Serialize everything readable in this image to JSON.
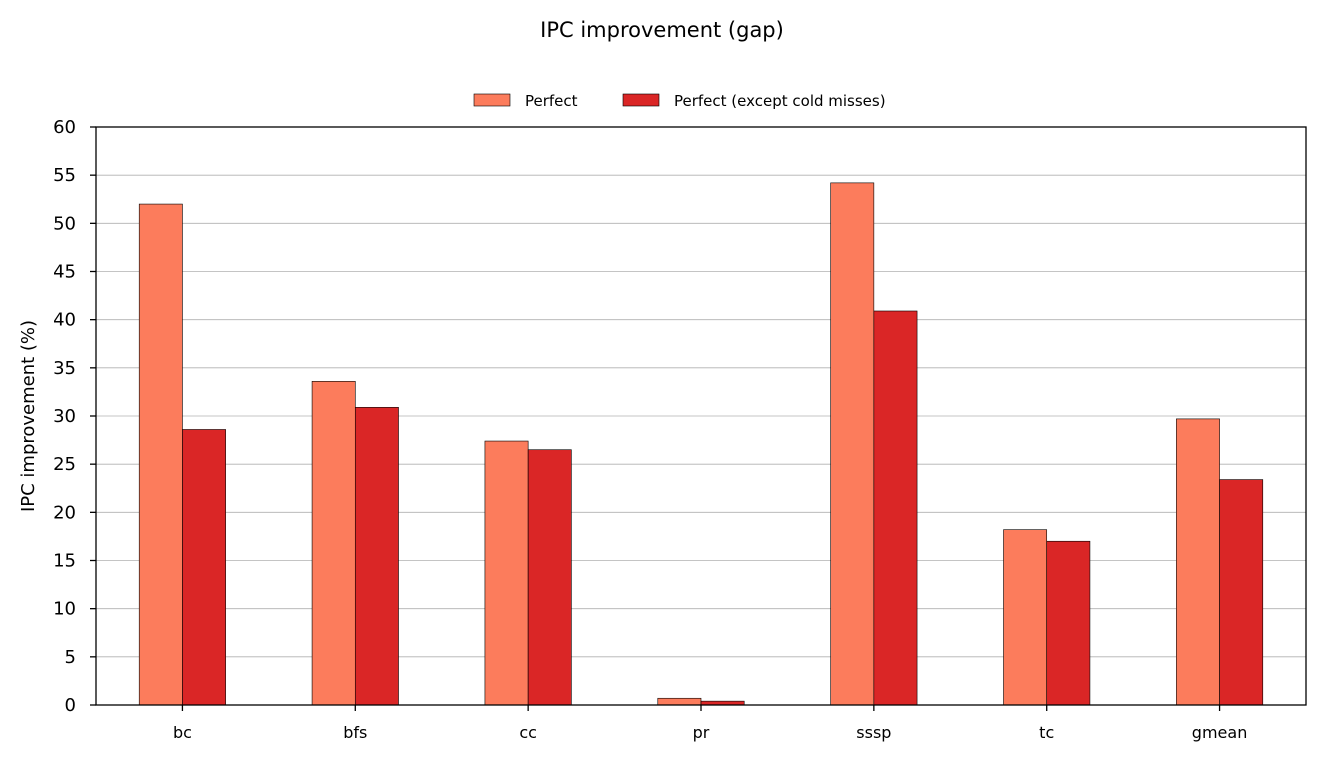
{
  "chart_data": {
    "type": "bar",
    "title": "IPC improvement (gap)",
    "xlabel": "",
    "ylabel": "IPC improvement (%)",
    "categories": [
      "bc",
      "bfs",
      "cc",
      "pr",
      "sssp",
      "tc",
      "gmean"
    ],
    "series": [
      {
        "name": "Perfect",
        "color": "#fc7c5c",
        "values": [
          52.0,
          33.6,
          27.4,
          0.7,
          54.2,
          18.2,
          29.7
        ]
      },
      {
        "name": "Perfect (except cold misses)",
        "color": "#da2626",
        "values": [
          28.6,
          30.9,
          26.5,
          0.4,
          40.9,
          17.0,
          23.4
        ]
      }
    ],
    "ylim": [
      0,
      60
    ],
    "yticks": [
      0,
      5,
      10,
      15,
      20,
      25,
      30,
      35,
      40,
      45,
      50,
      55,
      60
    ],
    "grid": "horizontal",
    "legend_position": "top-center"
  }
}
